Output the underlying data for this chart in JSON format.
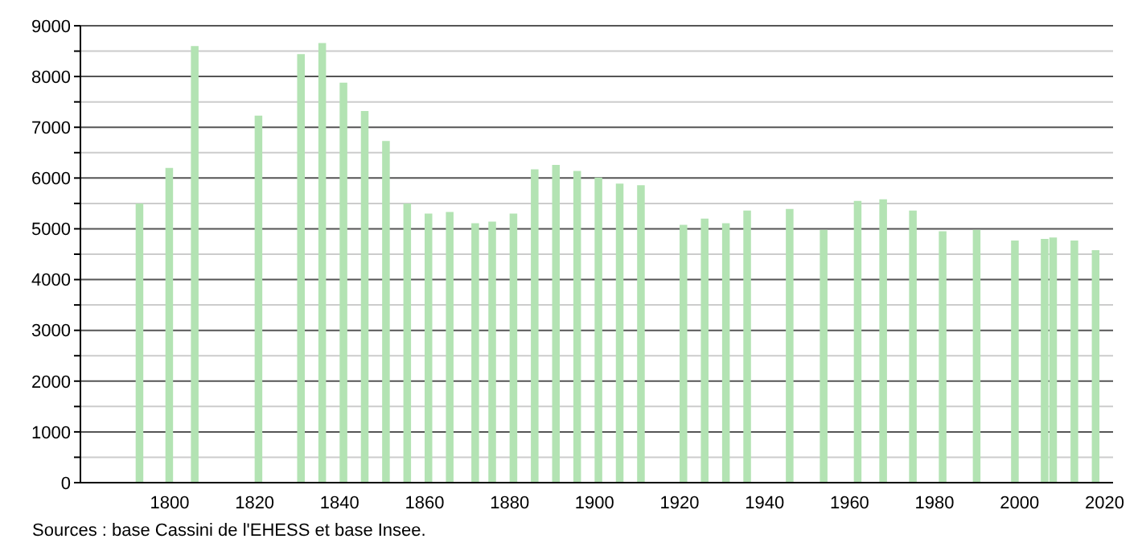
{
  "chart_data": {
    "type": "bar",
    "x": [
      1793,
      1800,
      1806,
      1821,
      1831,
      1836,
      1841,
      1846,
      1851,
      1856,
      1861,
      1866,
      1872,
      1876,
      1881,
      1886,
      1891,
      1896,
      1901,
      1906,
      1911,
      1921,
      1926,
      1931,
      1936,
      1946,
      1954,
      1962,
      1968,
      1975,
      1982,
      1990,
      1999,
      2006,
      2008,
      2013,
      2018
    ],
    "values": [
      5500,
      6200,
      8600,
      7230,
      8440,
      8660,
      7880,
      7320,
      6730,
      5500,
      5300,
      5330,
      5110,
      5140,
      5300,
      6170,
      6260,
      6140,
      6010,
      5890,
      5860,
      5080,
      5200,
      5110,
      5360,
      5390,
      4980,
      5550,
      5580,
      5360,
      4950,
      4980,
      4770,
      4800,
      4830,
      4770,
      4580
    ],
    "color": "#b3e3b3",
    "xlim": [
      1779,
      2022
    ],
    "xticks": [
      1800,
      1820,
      1840,
      1860,
      1880,
      1900,
      1920,
      1940,
      1960,
      1980,
      2000,
      2020
    ],
    "ylim": [
      0,
      9000
    ],
    "yticks": [
      0,
      {
        "value": 500,
        "label": null
      },
      1000,
      {
        "value": 1500,
        "label": null
      },
      2000,
      {
        "value": 2500,
        "label": null
      },
      3000,
      {
        "value": 3500,
        "label": null
      },
      4000,
      {
        "value": 4500,
        "label": null
      },
      5000,
      {
        "value": 5500,
        "label": null
      },
      6000,
      {
        "value": 6500,
        "label": null
      },
      7000,
      {
        "value": 7500,
        "label": null
      },
      8000,
      {
        "value": 8500,
        "label": null
      },
      9000
    ],
    "grid": "y",
    "annotations": [
      "Sources : base Cassini de l'EHESS et base Insee."
    ]
  }
}
